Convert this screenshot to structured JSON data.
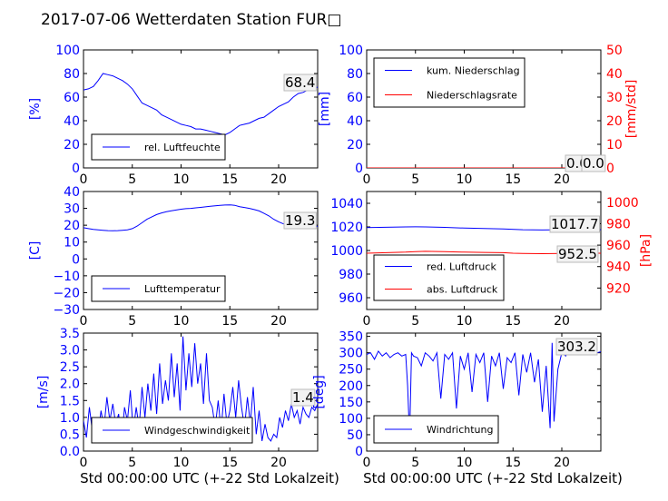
{
  "title": "2017-07-06 Wetterdaten Station FUR□",
  "colors": {
    "primary": "#0000ff",
    "secondary": "#ff0000",
    "axis": "#000000",
    "background": "#ffffff"
  },
  "chart_data": [
    {
      "id": "humidity",
      "type": "line",
      "xlim": [
        0,
        24
      ],
      "ylim": [
        0,
        100
      ],
      "xticks": [
        "0",
        "5",
        "10",
        "15",
        "20"
      ],
      "yticks": [
        "0",
        "20",
        "40",
        "60",
        "80",
        "100"
      ],
      "ylabel": "[%]",
      "last_value_label": "68.4",
      "legend": [
        {
          "name": "rel. Luftfeuchte",
          "color": "#0000ff"
        }
      ],
      "series": [
        {
          "name": "rel. Luftfeuchte",
          "color": "#0000ff",
          "x": [
            0,
            0.5,
            1,
            1.5,
            2,
            2.5,
            3,
            3.5,
            4,
            4.5,
            5,
            5.5,
            6,
            6.5,
            7,
            7.5,
            8,
            8.5,
            9,
            9.5,
            10,
            10.5,
            11,
            11.5,
            12,
            12.5,
            13,
            13.5,
            14,
            14.5,
            15,
            15.5,
            16,
            16.5,
            17,
            17.5,
            18,
            18.5,
            19,
            19.5,
            20,
            20.5,
            21,
            21.5,
            22,
            22.5,
            23,
            23.5,
            24
          ],
          "y": [
            66,
            67,
            69,
            74,
            80,
            79,
            78,
            76,
            74,
            71,
            67,
            61,
            55,
            53,
            51,
            49,
            45,
            43,
            41,
            39,
            37,
            36,
            35,
            33,
            33,
            32,
            31,
            30,
            29,
            28,
            30,
            33,
            36,
            37,
            38,
            40,
            42,
            43,
            46,
            49,
            52,
            54,
            56,
            60,
            63,
            64,
            66,
            68,
            68.4
          ]
        }
      ]
    },
    {
      "id": "precipitation",
      "type": "line",
      "xlim": [
        0,
        24
      ],
      "ylim": [
        0,
        100
      ],
      "ylim_right": [
        0,
        50
      ],
      "xticks": [
        "0",
        "5",
        "10",
        "15",
        "20"
      ],
      "yticks": [
        "0",
        "20",
        "40",
        "60",
        "80",
        "100"
      ],
      "yticks_right": [
        "0",
        "10",
        "20",
        "30",
        "40",
        "50"
      ],
      "ylabel": "[mm]",
      "ylabel_right": "[mm/std]",
      "last_value_label": "0.00",
      "last_value_label_2": "0.0",
      "legend": [
        {
          "name": "kum. Niederschlag",
          "color": "#0000ff"
        },
        {
          "name": "Niederschlagsrate",
          "color": "#ff0000"
        }
      ],
      "series": [
        {
          "name": "kum. Niederschlag",
          "color": "#0000ff",
          "axis": "left",
          "x": [
            0,
            24
          ],
          "y": [
            0,
            0
          ]
        },
        {
          "name": "Niederschlagsrate",
          "color": "#ff0000",
          "axis": "right",
          "x": [
            0,
            24
          ],
          "y": [
            0,
            0
          ]
        }
      ]
    },
    {
      "id": "temperature",
      "type": "line",
      "xlim": [
        0,
        24
      ],
      "ylim": [
        -30,
        40
      ],
      "xticks": [
        "0",
        "5",
        "10",
        "15",
        "20"
      ],
      "yticks": [
        "−30",
        "−20",
        "−10",
        "0",
        "10",
        "20",
        "30",
        "40"
      ],
      "ylabel": "[C]",
      "last_value_label": "19.3",
      "legend": [
        {
          "name": "Lufttemperatur",
          "color": "#0000ff"
        }
      ],
      "series": [
        {
          "name": "Lufttemperatur",
          "color": "#0000ff",
          "x": [
            0,
            0.5,
            1,
            1.5,
            2,
            2.5,
            3,
            3.5,
            4,
            4.5,
            5,
            5.5,
            6,
            6.5,
            7,
            7.5,
            8,
            8.5,
            9,
            9.5,
            10,
            10.5,
            11,
            11.5,
            12,
            12.5,
            13,
            13.5,
            14,
            14.5,
            15,
            15.5,
            16,
            16.5,
            17,
            17.5,
            18,
            18.5,
            19,
            19.5,
            20,
            20.5,
            21,
            21.5,
            22,
            22.5,
            23,
            23.5,
            24
          ],
          "y": [
            18.5,
            18,
            17.5,
            17.2,
            17,
            16.8,
            16.7,
            16.8,
            17,
            17.3,
            18,
            19.5,
            21.5,
            23.5,
            25,
            26.3,
            27.3,
            28,
            28.6,
            29,
            29.5,
            29.8,
            30,
            30.3,
            30.6,
            30.9,
            31.2,
            31.5,
            31.8,
            32,
            32.1,
            31.8,
            31,
            30.5,
            30,
            29.3,
            28.5,
            27,
            25.5,
            23.5,
            22,
            20.8,
            20,
            19.7,
            19.5,
            19.4,
            19.3,
            19.3,
            19.3
          ]
        }
      ]
    },
    {
      "id": "pressure",
      "type": "line",
      "xlim": [
        0,
        24
      ],
      "ylim": [
        950,
        1050
      ],
      "ylim_right": [
        900,
        1010
      ],
      "xticks": [
        "0",
        "5",
        "10",
        "15",
        "20"
      ],
      "yticks": [
        "960",
        "980",
        "1000",
        "1020",
        "1040"
      ],
      "yticks_right": [
        "920",
        "940",
        "960",
        "980",
        "1000"
      ],
      "ylabel": "",
      "ylabel_right": "[hPa]",
      "last_value_label": "1017.7",
      "last_value_label_2": "952.5",
      "legend": [
        {
          "name": "red. Luftdruck",
          "color": "#0000ff"
        },
        {
          "name": "abs. Luftdruck",
          "color": "#ff0000"
        }
      ],
      "series": [
        {
          "name": "red. Luftdruck",
          "color": "#0000ff",
          "axis": "left",
          "x": [
            0,
            2,
            4,
            5,
            6,
            8,
            10,
            12,
            14,
            16,
            18,
            20,
            22,
            24
          ],
          "y": [
            1019.5,
            1019.7,
            1020,
            1020.1,
            1020,
            1019.6,
            1019,
            1018.6,
            1018.2,
            1017.6,
            1017.4,
            1017.6,
            1017.7,
            1017.7
          ]
        },
        {
          "name": "abs. Luftdruck",
          "color": "#ff0000",
          "axis": "right",
          "x": [
            0,
            2,
            4,
            5,
            6,
            8,
            10,
            12,
            14,
            15,
            16,
            18,
            20,
            22,
            24
          ],
          "y": [
            952.5,
            953,
            953.5,
            954,
            954.2,
            954,
            953.5,
            953.2,
            953,
            952.5,
            952.2,
            952,
            952.2,
            952.4,
            952.5
          ]
        }
      ]
    },
    {
      "id": "wind_speed",
      "type": "line",
      "xlim": [
        0,
        24
      ],
      "ylim": [
        0,
        3.5
      ],
      "xticks": [
        "0",
        "5",
        "10",
        "15",
        "20"
      ],
      "yticks": [
        "0.0",
        "0.5",
        "1.0",
        "1.5",
        "2.0",
        "2.5",
        "3.0",
        "3.5"
      ],
      "ylabel": "[m/s]",
      "xlabel": "Std 00:00:00 UTC (+-22 Std Lokalzeit)",
      "last_value_label": "1.4",
      "legend": [
        {
          "name": "Windgeschwindigkeit",
          "color": "#0000ff"
        }
      ],
      "series": [
        {
          "name": "Windgeschwindigkeit",
          "color": "#0000ff",
          "x": [
            0,
            0.3,
            0.6,
            0.9,
            1.2,
            1.5,
            1.8,
            2.1,
            2.4,
            2.7,
            3,
            3.3,
            3.6,
            3.9,
            4.2,
            4.5,
            4.8,
            5.1,
            5.4,
            5.7,
            6,
            6.3,
            6.6,
            6.9,
            7.2,
            7.5,
            7.8,
            8.1,
            8.4,
            8.7,
            9,
            9.3,
            9.6,
            9.9,
            10.2,
            10.5,
            10.8,
            11.1,
            11.4,
            11.7,
            12,
            12.3,
            12.6,
            12.9,
            13.2,
            13.5,
            13.8,
            14.1,
            14.4,
            14.7,
            15,
            15.3,
            15.6,
            15.9,
            16.2,
            16.5,
            16.8,
            17.1,
            17.4,
            17.7,
            18,
            18.3,
            18.6,
            18.9,
            19.2,
            19.5,
            19.8,
            20.1,
            20.4,
            20.7,
            21,
            21.3,
            21.6,
            21.9,
            22.2,
            22.5,
            22.8,
            23.1,
            23.4,
            23.7,
            24
          ],
          "y": [
            0.9,
            0.4,
            1.3,
            0.6,
            1.0,
            0.5,
            1.2,
            0.7,
            1.6,
            0.9,
            1.4,
            0.8,
            1.1,
            0.3,
            1.3,
            0.9,
            1.8,
            0.6,
            1.3,
            0.7,
            1.9,
            1.0,
            2.0,
            1.2,
            2.3,
            1.1,
            2.6,
            1.4,
            2.1,
            1.5,
            2.9,
            1.6,
            2.6,
            1.2,
            3.4,
            1.8,
            2.9,
            1.9,
            3.2,
            2.0,
            2.6,
            1.4,
            2.9,
            1.5,
            1.3,
            0.7,
            1.5,
            0.6,
            1.7,
            0.8,
            1.2,
            1.9,
            1.0,
            2.1,
            1.3,
            0.7,
            1.6,
            0.8,
            1.9,
            0.5,
            1.2,
            0.3,
            0.8,
            0.4,
            0.3,
            0.5,
            0.4,
            1.0,
            0.7,
            1.2,
            0.9,
            1.4,
            1.0,
            1.2,
            0.8,
            1.3,
            1.1,
            1.0,
            1.3,
            1.2,
            1.4
          ]
        }
      ]
    },
    {
      "id": "wind_direction",
      "type": "line",
      "xlim": [
        0,
        24
      ],
      "ylim": [
        0,
        360
      ],
      "xticks": [
        "0",
        "5",
        "10",
        "15",
        "20"
      ],
      "yticks": [
        "0",
        "50",
        "100",
        "150",
        "200",
        "250",
        "300",
        "350"
      ],
      "ylabel": "[deg]",
      "xlabel": "Std 00:00:00 UTC (+-22 Std Lokalzeit)",
      "last_value_label": "303.2",
      "legend": [
        {
          "name": "Windrichtung",
          "color": "#0000ff"
        }
      ],
      "series": [
        {
          "name": "Windrichtung",
          "color": "#0000ff",
          "x": [
            0,
            0.4,
            0.8,
            1.2,
            1.6,
            2,
            2.4,
            2.8,
            3.2,
            3.6,
            4,
            4.2,
            4.4,
            4.6,
            4.8,
            5.2,
            5.6,
            6,
            6.4,
            6.8,
            7.2,
            7.6,
            8,
            8.4,
            8.8,
            9.2,
            9.6,
            10,
            10.4,
            10.8,
            11.2,
            11.6,
            12,
            12.4,
            12.8,
            13.2,
            13.6,
            14,
            14.4,
            14.8,
            15.2,
            15.6,
            16,
            16.4,
            16.8,
            17.2,
            17.6,
            18,
            18.4,
            18.8,
            19,
            19.2,
            19.6,
            20,
            20.4,
            20.8,
            21.2,
            21.6,
            22,
            22.4,
            22.8,
            23.2,
            23.6,
            24
          ],
          "y": [
            295,
            300,
            280,
            305,
            290,
            300,
            285,
            295,
            300,
            290,
            295,
            200,
            40,
            300,
            290,
            285,
            260,
            300,
            290,
            275,
            300,
            160,
            295,
            280,
            300,
            130,
            290,
            250,
            300,
            180,
            295,
            270,
            300,
            150,
            290,
            260,
            300,
            190,
            285,
            270,
            300,
            170,
            295,
            240,
            300,
            210,
            280,
            120,
            260,
            70,
            330,
            90,
            250,
            300,
            290,
            310,
            300,
            295,
            305,
            300,
            310,
            295,
            300,
            303.2
          ]
        }
      ]
    }
  ]
}
